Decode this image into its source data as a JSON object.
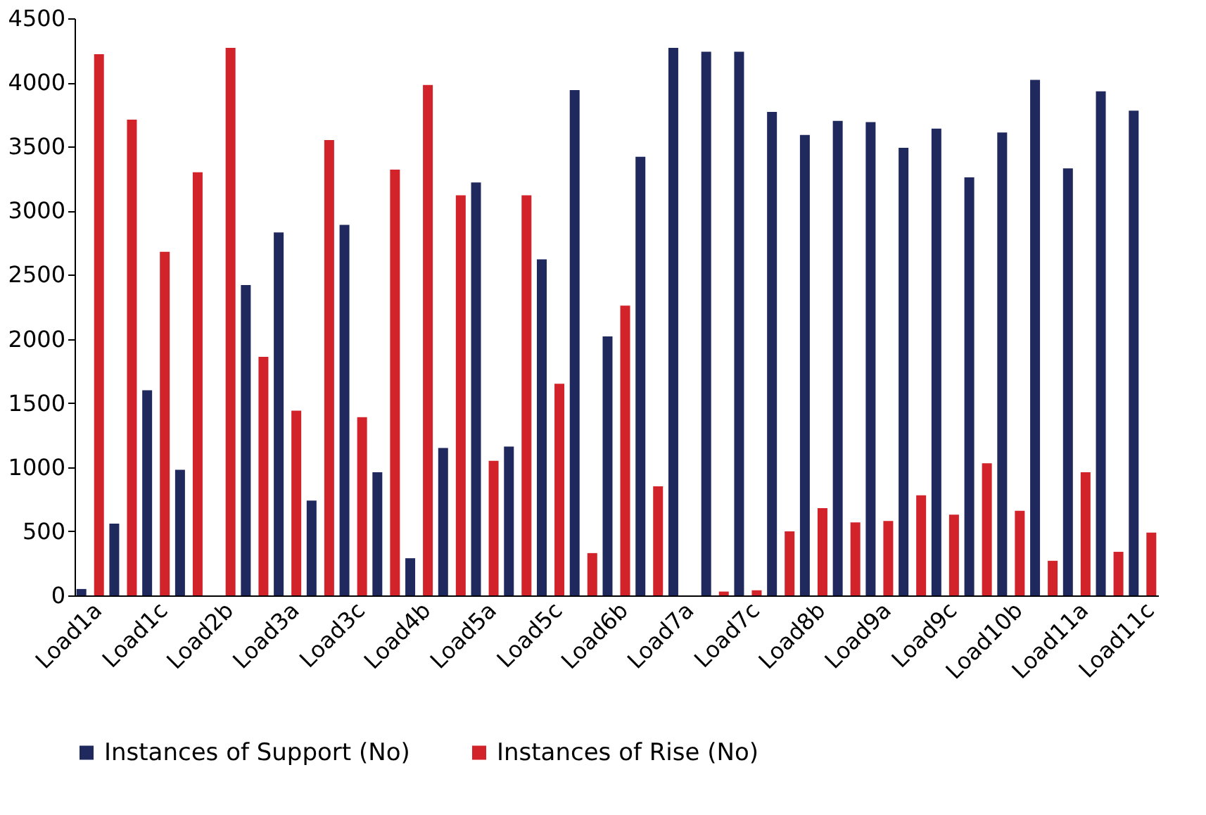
{
  "chart_data": {
    "type": "bar",
    "categories": [
      "Load1a",
      null,
      "Load1c",
      null,
      "Load2b",
      null,
      "Load3a",
      null,
      "Load3c",
      null,
      "Load4b",
      null,
      "Load5a",
      null,
      "Load5c",
      null,
      "Load6b",
      null,
      "Load7a",
      null,
      "Load7c",
      null,
      "Load8b",
      null,
      "Load9a",
      null,
      "Load9c",
      null,
      "Load10b",
      null,
      "Load11a",
      null,
      "Load11c"
    ],
    "series": [
      {
        "name": "Instances of Support (No)",
        "color": "#20295e",
        "values": [
          50,
          560,
          1600,
          980,
          0,
          2420,
          2830,
          740,
          2890,
          960,
          290,
          1150,
          3220,
          1160,
          2620,
          3940,
          2020,
          3420,
          4270,
          4240,
          4240,
          3770,
          3590,
          3700,
          3690,
          3490,
          3640,
          3260,
          3610,
          4020,
          3330,
          3930,
          3780
        ]
      },
      {
        "name": "Instances of Rise (No)",
        "color": "#d2232a",
        "values": [
          4220,
          3710,
          2680,
          3300,
          4270,
          1860,
          1440,
          3550,
          1390,
          3320,
          3980,
          3120,
          1050,
          3120,
          1650,
          330,
          2260,
          850,
          0,
          30,
          40,
          500,
          680,
          570,
          580,
          780,
          630,
          1030,
          660,
          270,
          960,
          340,
          490
        ]
      }
    ],
    "ylim": [
      0,
      4500
    ],
    "yticks": [
      0,
      500,
      1000,
      1500,
      2000,
      2500,
      3000,
      3500,
      4000,
      4500
    ],
    "grid": false,
    "legend": "bottom"
  }
}
